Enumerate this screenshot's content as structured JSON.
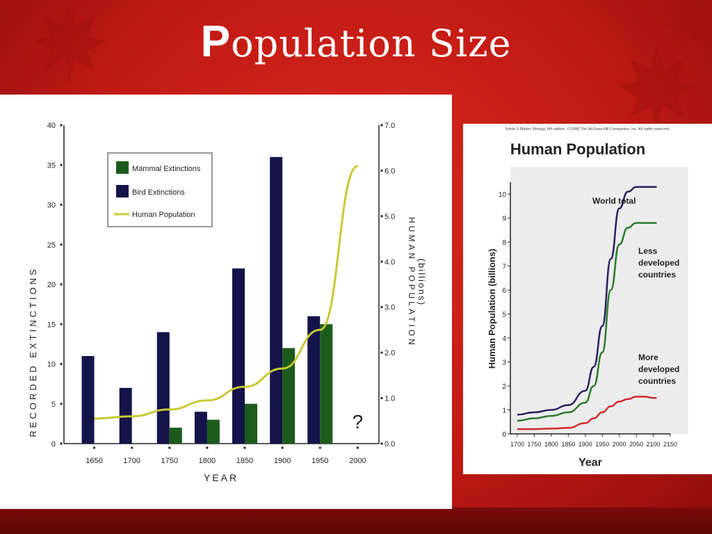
{
  "slide": {
    "title_first": "P",
    "title_rest": "opulation Size"
  },
  "chart_data": [
    {
      "type": "bar",
      "categories": [
        "1650",
        "1700",
        "1750",
        "1800",
        "1850",
        "1900",
        "1950",
        "2000"
      ],
      "series": [
        {
          "name": "Mammal Extinctions",
          "type": "bar",
          "color": "#1d5b1d",
          "values": [
            0,
            0,
            2,
            3,
            5,
            12,
            15,
            0
          ]
        },
        {
          "name": "Bird Extinctions",
          "type": "bar",
          "color": "#14144a",
          "values": [
            11,
            7,
            14,
            4,
            22,
            36,
            16,
            0
          ]
        },
        {
          "name": "Human Population",
          "type": "line",
          "axis": "right",
          "color": "#c8c832",
          "x": [
            1650,
            1700,
            1750,
            1800,
            1850,
            1900,
            1950,
            2000
          ],
          "values": [
            0.55,
            0.6,
            0.75,
            0.95,
            1.25,
            1.65,
            2.5,
            6.1
          ]
        }
      ],
      "question_mark": "?",
      "xlabel": "YEAR",
      "ylabel": "RECORDED EXTINCTIONS",
      "y2label_line1": "HUMAN POPULATION",
      "y2label_line2": "(billions)",
      "ylim": [
        0,
        40
      ],
      "y2lim": [
        0,
        7
      ],
      "yticks": [
        "0",
        "5",
        "10",
        "15",
        "20",
        "25",
        "30",
        "35",
        "40"
      ],
      "y2ticks": [
        "0.0",
        "1.0",
        "2.0",
        "3.0",
        "4.0",
        "5.0",
        "6.0",
        "7.0"
      ],
      "legend_position": "top-left"
    },
    {
      "type": "line",
      "credit": "Sylvia S Mader, Biology, 6th edition. © 1998 The McGraw-Hill Companies, Inc. All rights reserved.",
      "title": "Human Population",
      "xlabel": "Year",
      "ylabel": "Human Population (billions)",
      "xlim": [
        1700,
        2150
      ],
      "ylim": [
        0,
        10.5
      ],
      "xticks": [
        "1700",
        "1750",
        "1800",
        "1850",
        "1900",
        "1950",
        "2000",
        "2050",
        "2100",
        "2150"
      ],
      "yticks": [
        "0",
        "1",
        "2",
        "3",
        "4",
        "5",
        "6",
        "7",
        "8",
        "9",
        "10"
      ],
      "series": [
        {
          "name": "World total",
          "color": "#2a1f5e",
          "x": [
            1700,
            1750,
            1800,
            1850,
            1900,
            1925,
            1950,
            1975,
            2000,
            2025,
            2050,
            2075,
            2100,
            2110
          ],
          "values": [
            0.8,
            0.9,
            1.0,
            1.2,
            1.8,
            2.8,
            4.5,
            7.3,
            9.4,
            10.1,
            10.3,
            10.3,
            10.3,
            10.3
          ]
        },
        {
          "name_line1": "Less",
          "name_line2": "developed",
          "name_line3": "countries",
          "color": "#2b7a2b",
          "x": [
            1700,
            1750,
            1800,
            1850,
            1900,
            1925,
            1950,
            1975,
            2000,
            2025,
            2050,
            2075,
            2100,
            2110
          ],
          "values": [
            0.55,
            0.65,
            0.75,
            0.9,
            1.3,
            2.0,
            3.4,
            6.0,
            7.9,
            8.6,
            8.8,
            8.8,
            8.8,
            8.8
          ]
        },
        {
          "name_line1": "More",
          "name_line2": "developed",
          "name_line3": "countries",
          "color": "#d42a2a",
          "x": [
            1700,
            1750,
            1800,
            1850,
            1900,
            1925,
            1950,
            1975,
            2000,
            2025,
            2050,
            2075,
            2100,
            2110
          ],
          "values": [
            0.2,
            0.2,
            0.22,
            0.25,
            0.45,
            0.65,
            0.9,
            1.15,
            1.35,
            1.45,
            1.55,
            1.55,
            1.5,
            1.5
          ]
        }
      ]
    }
  ]
}
